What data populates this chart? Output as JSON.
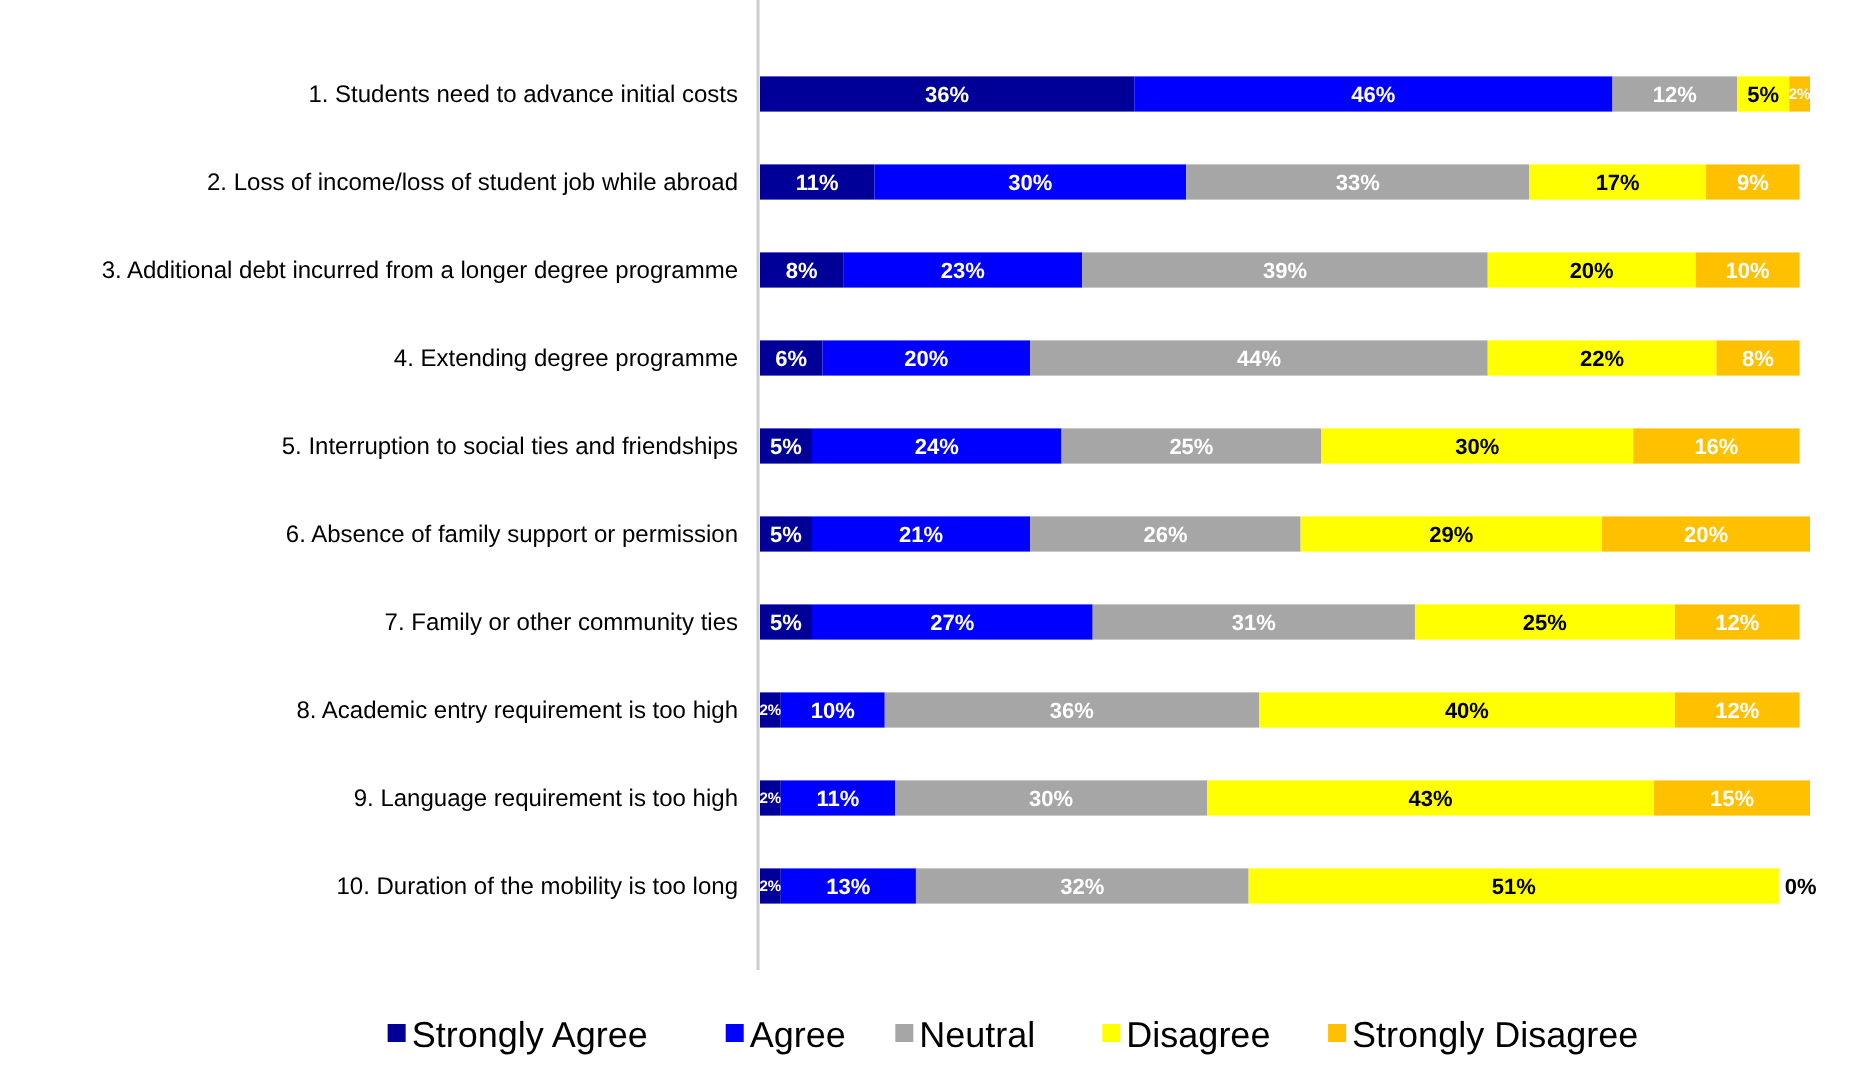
{
  "chart_data": {
    "type": "bar",
    "orientation": "horizontal",
    "stacked": true,
    "legend": "bottom",
    "grid": false,
    "categories": [
      "1. Students need to advance initial costs",
      "2. Loss of income/loss of student job while abroad",
      "3. Additional debt incurred from a longer degree programme",
      "4. Extending degree programme",
      "5. Interruption to social ties and friendships",
      "6. Absence of family support or permission",
      "7. Family or other community ties",
      "8. Academic entry requirement is too high",
      "9. Language requirement is too high",
      "10. Duration of the mobility is too long"
    ],
    "series": [
      {
        "name": "Strongly Agree",
        "color": "#000099",
        "values": [
          36,
          11,
          8,
          6,
          5,
          5,
          5,
          2,
          2,
          2
        ],
        "value_labels": [
          "36%",
          "11%",
          "8%",
          "6%",
          "5%",
          "5%",
          "5%",
          "2%",
          "2%",
          "2%"
        ]
      },
      {
        "name": "Agree",
        "color": "#0000ff",
        "values": [
          46,
          30,
          23,
          20,
          24,
          21,
          27,
          10,
          11,
          13
        ],
        "value_labels": [
          "46%",
          "30%",
          "23%",
          "20%",
          "24%",
          "21%",
          "27%",
          "10%",
          "11%",
          "13%"
        ]
      },
      {
        "name": "Neutral",
        "color": "#a6a6a6",
        "values": [
          12,
          33,
          39,
          44,
          25,
          26,
          31,
          36,
          30,
          32
        ],
        "value_labels": [
          "12%",
          "33%",
          "39%",
          "44%",
          "25%",
          "26%",
          "31%",
          "36%",
          "30%",
          "32%"
        ]
      },
      {
        "name": "Disagree",
        "color": "#ffff00",
        "values": [
          5,
          17,
          20,
          22,
          30,
          29,
          25,
          40,
          43,
          51
        ],
        "value_labels": [
          "5%",
          "17%",
          "20%",
          "22%",
          "30%",
          "29%",
          "25%",
          "40%",
          "43%",
          "51%"
        ]
      },
      {
        "name": "Strongly Disagree",
        "color": "#ffc000",
        "values": [
          2,
          9,
          10,
          8,
          16,
          20,
          12,
          12,
          15,
          0
        ],
        "value_labels": [
          "2%",
          "9%",
          "10%",
          "8%",
          "16%",
          "20%",
          "12%",
          "12%",
          "15%",
          "0%"
        ]
      }
    ]
  }
}
